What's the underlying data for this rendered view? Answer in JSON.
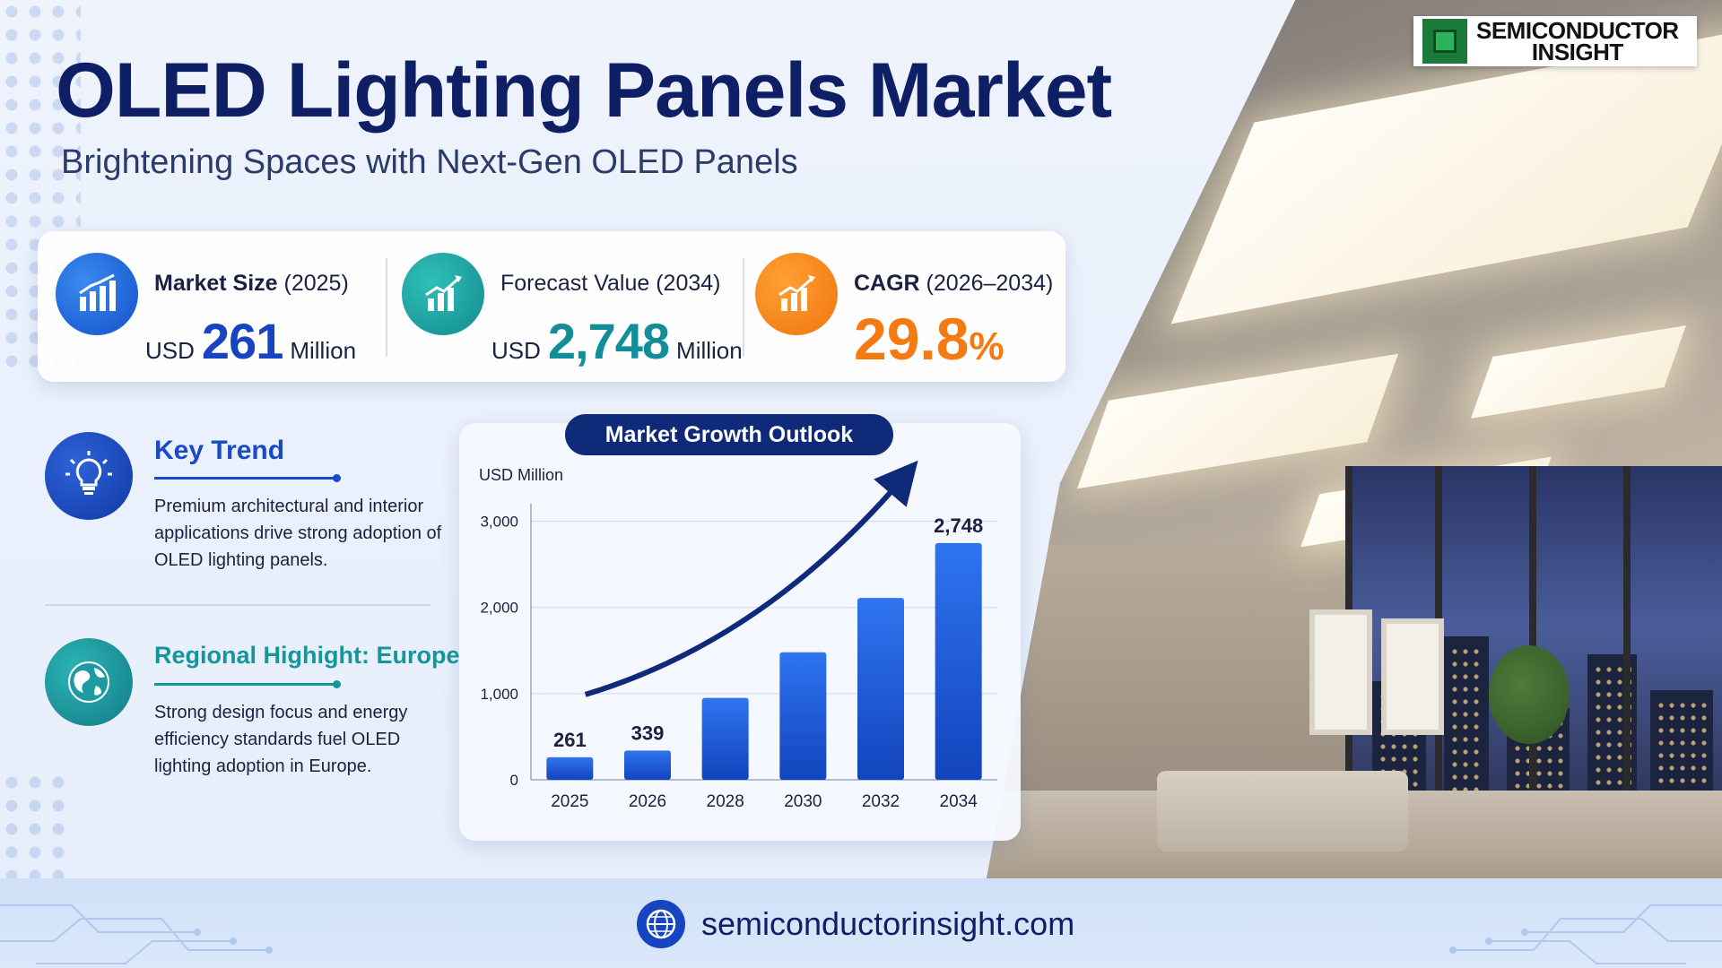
{
  "header": {
    "title": "OLED Lighting Panels Market",
    "subtitle": "Brightening Spaces with Next-Gen OLED Panels"
  },
  "logo": {
    "line1": "SEMICONDUCTOR",
    "line2": "INSIGHT"
  },
  "kpis": {
    "market_size": {
      "label_bold": "Market Size",
      "label_rest": " (2025)",
      "prefix": "USD",
      "value": "261",
      "unit": "Million"
    },
    "forecast": {
      "label_bold": "",
      "label_rest": "Forecast Value (2034)",
      "prefix": "USD",
      "value": "2,748",
      "unit": "Million"
    },
    "cagr": {
      "label_bold": "CAGR",
      "label_rest": " (2026–2034)",
      "value": "29.8",
      "unit": "%"
    }
  },
  "key_trend": {
    "heading": "Key Trend",
    "body": "Premium architectural and interior applications drive strong adoption of OLED lighting panels."
  },
  "regional": {
    "heading": "Regional Highight: Europe",
    "body": "Strong design focus and energy efficiency standards fuel OLED lighting adoption in Europe."
  },
  "chart_title": "Market Growth Outlook",
  "chart_data": {
    "type": "bar",
    "ylabel": "USD Million",
    "categories": [
      "2025",
      "2026",
      "2028",
      "2030",
      "2032",
      "2034"
    ],
    "values": [
      261,
      339,
      950,
      1480,
      2110,
      2748
    ],
    "data_labels": [
      "261",
      "339",
      "",
      "",
      "",
      "2,748"
    ],
    "yticks": [
      0,
      1000,
      2000,
      3000
    ],
    "ytick_labels": [
      "0",
      "1,000",
      "2,000",
      "3,000"
    ],
    "ylim": [
      0,
      3100
    ],
    "grid": true,
    "trend_arrow": true,
    "bar_color": "#1d5fe0"
  },
  "footer": {
    "url": "semiconductorinsight.com"
  },
  "colors": {
    "navy": "#0f1f66",
    "blue": "#1745c2",
    "teal": "#138d97",
    "orange": "#f47a14"
  }
}
